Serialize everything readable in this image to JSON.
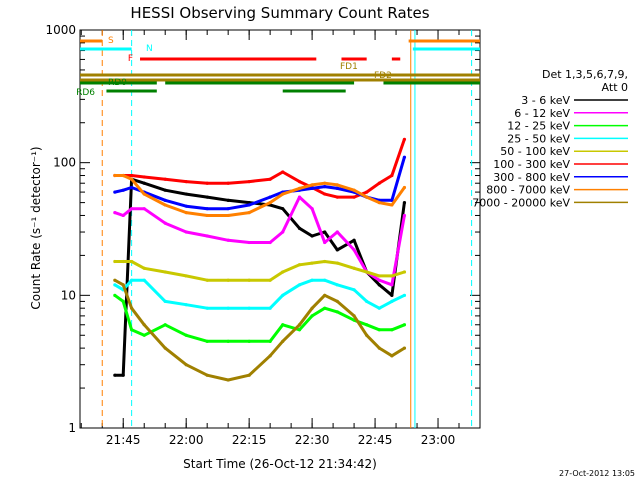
{
  "chart_data": {
    "type": "line",
    "title": "HESSI Observing Summary Count Rates",
    "xlabel": "Start Time (26-Oct-12 21:34:42)",
    "ylabel": "Count Rate (s⁻¹ detector⁻¹)",
    "y_scale": "log",
    "ylim": [
      1,
      1000
    ],
    "xlim": [
      "21:34:42",
      "23:10:00"
    ],
    "x_ticks": [
      "21:45",
      "22:00",
      "22:15",
      "22:30",
      "22:45",
      "23:00"
    ],
    "y_ticks": [
      "1",
      "10",
      "100",
      "1000"
    ],
    "footer_date": "27-Oct-2012 13:05",
    "legend": {
      "title": "Det 1,3,5,6,7,9,",
      "subtitle": "Att 0",
      "placement": "right"
    },
    "flags": [
      {
        "label": "S",
        "color": "#ff8000",
        "segments": [
          [
            "21:34:42",
            "21:40"
          ],
          [
            "22:53",
            "23:10"
          ]
        ]
      },
      {
        "label": "N",
        "color": "#00ffff",
        "segments": [
          [
            "21:34:42",
            "21:47"
          ],
          [
            "22:54",
            "23:10"
          ]
        ]
      },
      {
        "label": "F",
        "color": "#ff0000",
        "segments": [
          [
            "21:49",
            "22:31"
          ],
          [
            "22:37",
            "22:43"
          ],
          [
            "22:49",
            "22:51"
          ]
        ]
      },
      {
        "label": "FD1",
        "color": "#a08000",
        "segments": [
          [
            "21:34:42",
            "23:10"
          ]
        ]
      },
      {
        "label": "FD2",
        "color": "#a08000",
        "segments": [
          [
            "21:34:42",
            "23:10"
          ]
        ]
      },
      {
        "label": "RD0",
        "color": "#008000",
        "segments": [
          [
            "21:34:42",
            "21:53"
          ],
          [
            "21:55",
            "22:40"
          ],
          [
            "22:47",
            "23:10"
          ]
        ]
      },
      {
        "label": "RD6",
        "color": "#008000",
        "segments": [
          [
            "21:41",
            "21:53"
          ],
          [
            "22:23",
            "22:38"
          ]
        ]
      }
    ],
    "vlines": [
      {
        "time": "21:40:00",
        "color": "#ff8000",
        "style": "dashed"
      },
      {
        "time": "21:47:00",
        "color": "#00ffff",
        "style": "dashed"
      },
      {
        "time": "22:53:30",
        "color": "#ff8000",
        "style": "solid"
      },
      {
        "time": "22:54:30",
        "color": "#00ffff",
        "style": "solid"
      },
      {
        "time": "23:08:00",
        "color": "#00ffff",
        "style": "dashed"
      }
    ],
    "series": [
      {
        "name": "3 - 6 keV",
        "color": "#000000",
        "x": [
          "21:43",
          "21:45",
          "21:47",
          "21:50",
          "21:55",
          "22:00",
          "22:05",
          "22:10",
          "22:15",
          "22:20",
          "22:23",
          "22:27",
          "22:30",
          "22:33",
          "22:36",
          "22:40",
          "22:43",
          "22:46",
          "22:49",
          "22:52"
        ],
        "y": [
          2.5,
          2.5,
          75,
          70,
          62,
          58,
          55,
          52,
          50,
          48,
          45,
          32,
          28,
          30,
          22,
          26,
          15,
          12,
          10,
          50
        ]
      },
      {
        "name": "6 - 12 keV",
        "color": "#ff00ff",
        "x": [
          "21:43",
          "21:45",
          "21:47",
          "21:50",
          "21:55",
          "22:00",
          "22:05",
          "22:10",
          "22:15",
          "22:20",
          "22:23",
          "22:27",
          "22:30",
          "22:33",
          "22:36",
          "22:40",
          "22:43",
          "22:46",
          "22:49",
          "22:52"
        ],
        "y": [
          42,
          40,
          45,
          45,
          35,
          30,
          28,
          26,
          25,
          25,
          30,
          55,
          45,
          25,
          30,
          22,
          15,
          13,
          12,
          40
        ]
      },
      {
        "name": "12 - 25 keV",
        "color": "#00ff00",
        "x": [
          "21:43",
          "21:45",
          "21:47",
          "21:50",
          "21:55",
          "22:00",
          "22:05",
          "22:10",
          "22:15",
          "22:20",
          "22:23",
          "22:27",
          "22:30",
          "22:33",
          "22:36",
          "22:40",
          "22:43",
          "22:46",
          "22:49",
          "22:52"
        ],
        "y": [
          10,
          9,
          5.5,
          5,
          6,
          5,
          4.5,
          4.5,
          4.5,
          4.5,
          6,
          5.5,
          7,
          8,
          7.5,
          6.5,
          6,
          5.5,
          5.5,
          6
        ]
      },
      {
        "name": "25 - 50 keV",
        "color": "#00ffff",
        "x": [
          "21:43",
          "21:45",
          "21:47",
          "21:50",
          "21:55",
          "22:00",
          "22:05",
          "22:10",
          "22:15",
          "22:20",
          "22:23",
          "22:27",
          "22:30",
          "22:33",
          "22:36",
          "22:40",
          "22:43",
          "22:46",
          "22:49",
          "22:52"
        ],
        "y": [
          12,
          11,
          13,
          13,
          9,
          8.5,
          8,
          8,
          8,
          8,
          10,
          12,
          13,
          13,
          12,
          11,
          9,
          8,
          9,
          10
        ]
      },
      {
        "name": "50 - 100 keV",
        "color": "#c8c800",
        "x": [
          "21:43",
          "21:45",
          "21:47",
          "21:50",
          "21:55",
          "22:00",
          "22:05",
          "22:10",
          "22:15",
          "22:20",
          "22:23",
          "22:27",
          "22:30",
          "22:33",
          "22:36",
          "22:40",
          "22:43",
          "22:46",
          "22:49",
          "22:52"
        ],
        "y": [
          18,
          18,
          18,
          16,
          15,
          14,
          13,
          13,
          13,
          13,
          15,
          17,
          17.5,
          18,
          17.5,
          16,
          15,
          14,
          14,
          15
        ]
      },
      {
        "name": "100 - 300 keV",
        "color": "#ff0000",
        "x": [
          "21:43",
          "21:45",
          "21:47",
          "21:50",
          "21:55",
          "22:00",
          "22:05",
          "22:10",
          "22:15",
          "22:20",
          "22:23",
          "22:27",
          "22:30",
          "22:33",
          "22:36",
          "22:40",
          "22:43",
          "22:46",
          "22:49",
          "22:52"
        ],
        "y": [
          80,
          80,
          80,
          78,
          75,
          72,
          70,
          70,
          72,
          75,
          85,
          72,
          65,
          58,
          55,
          55,
          60,
          70,
          80,
          150
        ]
      },
      {
        "name": "300 - 800 keV",
        "color": "#0000ff",
        "x": [
          "21:43",
          "21:45",
          "21:47",
          "21:50",
          "21:55",
          "22:00",
          "22:05",
          "22:10",
          "22:15",
          "22:20",
          "22:23",
          "22:27",
          "22:30",
          "22:33",
          "22:36",
          "22:40",
          "22:43",
          "22:46",
          "22:49",
          "22:52"
        ],
        "y": [
          60,
          62,
          65,
          60,
          52,
          47,
          45,
          45,
          48,
          55,
          60,
          62,
          64,
          66,
          64,
          60,
          55,
          52,
          52,
          110
        ]
      },
      {
        "name": "800 - 7000 keV",
        "color": "#ff8000",
        "x": [
          "21:43",
          "21:45",
          "21:47",
          "21:50",
          "21:55",
          "22:00",
          "22:05",
          "22:10",
          "22:15",
          "22:20",
          "22:23",
          "22:27",
          "22:30",
          "22:33",
          "22:36",
          "22:40",
          "22:43",
          "22:46",
          "22:49",
          "22:52"
        ],
        "y": [
          80,
          80,
          75,
          58,
          48,
          42,
          40,
          40,
          42,
          50,
          58,
          64,
          68,
          70,
          68,
          62,
          55,
          50,
          48,
          65
        ]
      },
      {
        "name": "7000 - 20000 keV",
        "color": "#a08000",
        "x": [
          "21:43",
          "21:45",
          "21:47",
          "21:50",
          "21:55",
          "22:00",
          "22:05",
          "22:10",
          "22:15",
          "22:20",
          "22:23",
          "22:27",
          "22:30",
          "22:33",
          "22:36",
          "22:40",
          "22:43",
          "22:46",
          "22:49",
          "22:52"
        ],
        "y": [
          13,
          12,
          8,
          6,
          4,
          3,
          2.5,
          2.3,
          2.5,
          3.5,
          4.5,
          6,
          8,
          10,
          9,
          7,
          5,
          4,
          3.5,
          4
        ]
      }
    ]
  }
}
